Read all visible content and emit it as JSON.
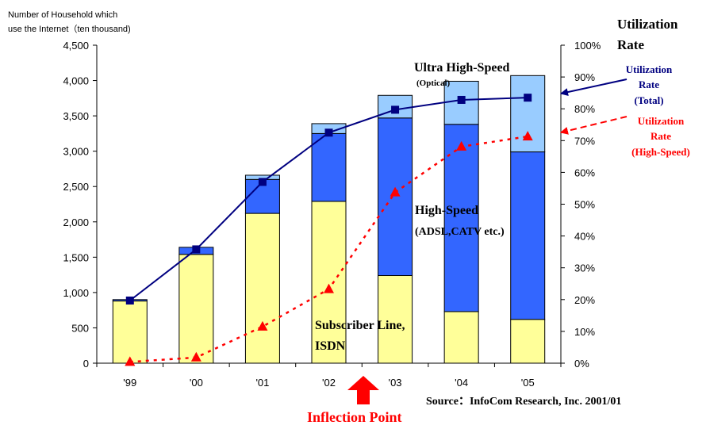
{
  "chart_data": {
    "type": "bar",
    "categories": [
      "'99",
      "'00",
      "'01",
      "'02",
      "'03",
      "'04",
      "'05"
    ],
    "stacked": true,
    "series": [
      {
        "name": "Subscriber Line, ISDN",
        "values": [
          880,
          1540,
          2120,
          2290,
          1240,
          730,
          620
        ],
        "color": "#ffff99"
      },
      {
        "name": "High-Speed (ADSL,CATV etc.)",
        "values": [
          20,
          100,
          480,
          960,
          2230,
          2650,
          2370
        ],
        "color": "#3366ff"
      },
      {
        "name": "Ultra High-Speed (Optical)",
        "values": [
          0,
          0,
          60,
          140,
          320,
          610,
          1080
        ],
        "color": "#99ccff"
      }
    ],
    "lines": [
      {
        "name": "Utilization Rate (Total)",
        "axis": "right",
        "values": [
          19.7,
          35.8,
          57,
          72.5,
          79.7,
          82.8,
          83.5
        ],
        "color": "#000080",
        "marker": "square",
        "style": "solid"
      },
      {
        "name": "Utilization Rate (High-Speed)",
        "axis": "right",
        "values": [
          0.4,
          1.8,
          11.5,
          23.3,
          53.7,
          68.1,
          71.3
        ],
        "color": "#ff0000",
        "marker": "triangle",
        "style": "dotted"
      }
    ],
    "ylabel": "Number of Household which use the Internet（ten thousand)",
    "ylim": [
      0,
      4500
    ],
    "yticks": [
      "0",
      "500",
      "1,000",
      "1,500",
      "2,000",
      "2,500",
      "3,000",
      "3,500",
      "4,000",
      "4,500"
    ],
    "y2label": "Utilization Rate",
    "y2lim": [
      0,
      100
    ],
    "y2ticks": [
      "0%",
      "10%",
      "20%",
      "30%",
      "40%",
      "50%",
      "60%",
      "70%",
      "80%",
      "90%",
      "100%"
    ],
    "grid": false
  },
  "labels": {
    "ylabel_line1": "Number of Household which",
    "ylabel_line2": "use the Internet（ten thousand)",
    "y2label_line1": "Utilization",
    "y2label_line2": "Rate",
    "ultra_line1": "Ultra High-Speed",
    "ultra_line2": "(Optical)",
    "high_line1": "High-Speed",
    "high_line2": "(ADSL,CATV etc.)",
    "sub_line1": "Subscriber Line,",
    "sub_line2": "ISDN",
    "total_line1": "Utilization",
    "total_line2": "Rate",
    "total_line3": "(Total)",
    "hs_line1": "Utilization",
    "hs_line2": "Rate",
    "hs_line3": "(High-Speed)",
    "source": "Source：InfoCom Research, Inc.   2001/01",
    "inflection": "Inflection Point"
  },
  "colors": {
    "total": "#000080",
    "highspeed": "#ff0000",
    "inflection": "#ff0000"
  }
}
